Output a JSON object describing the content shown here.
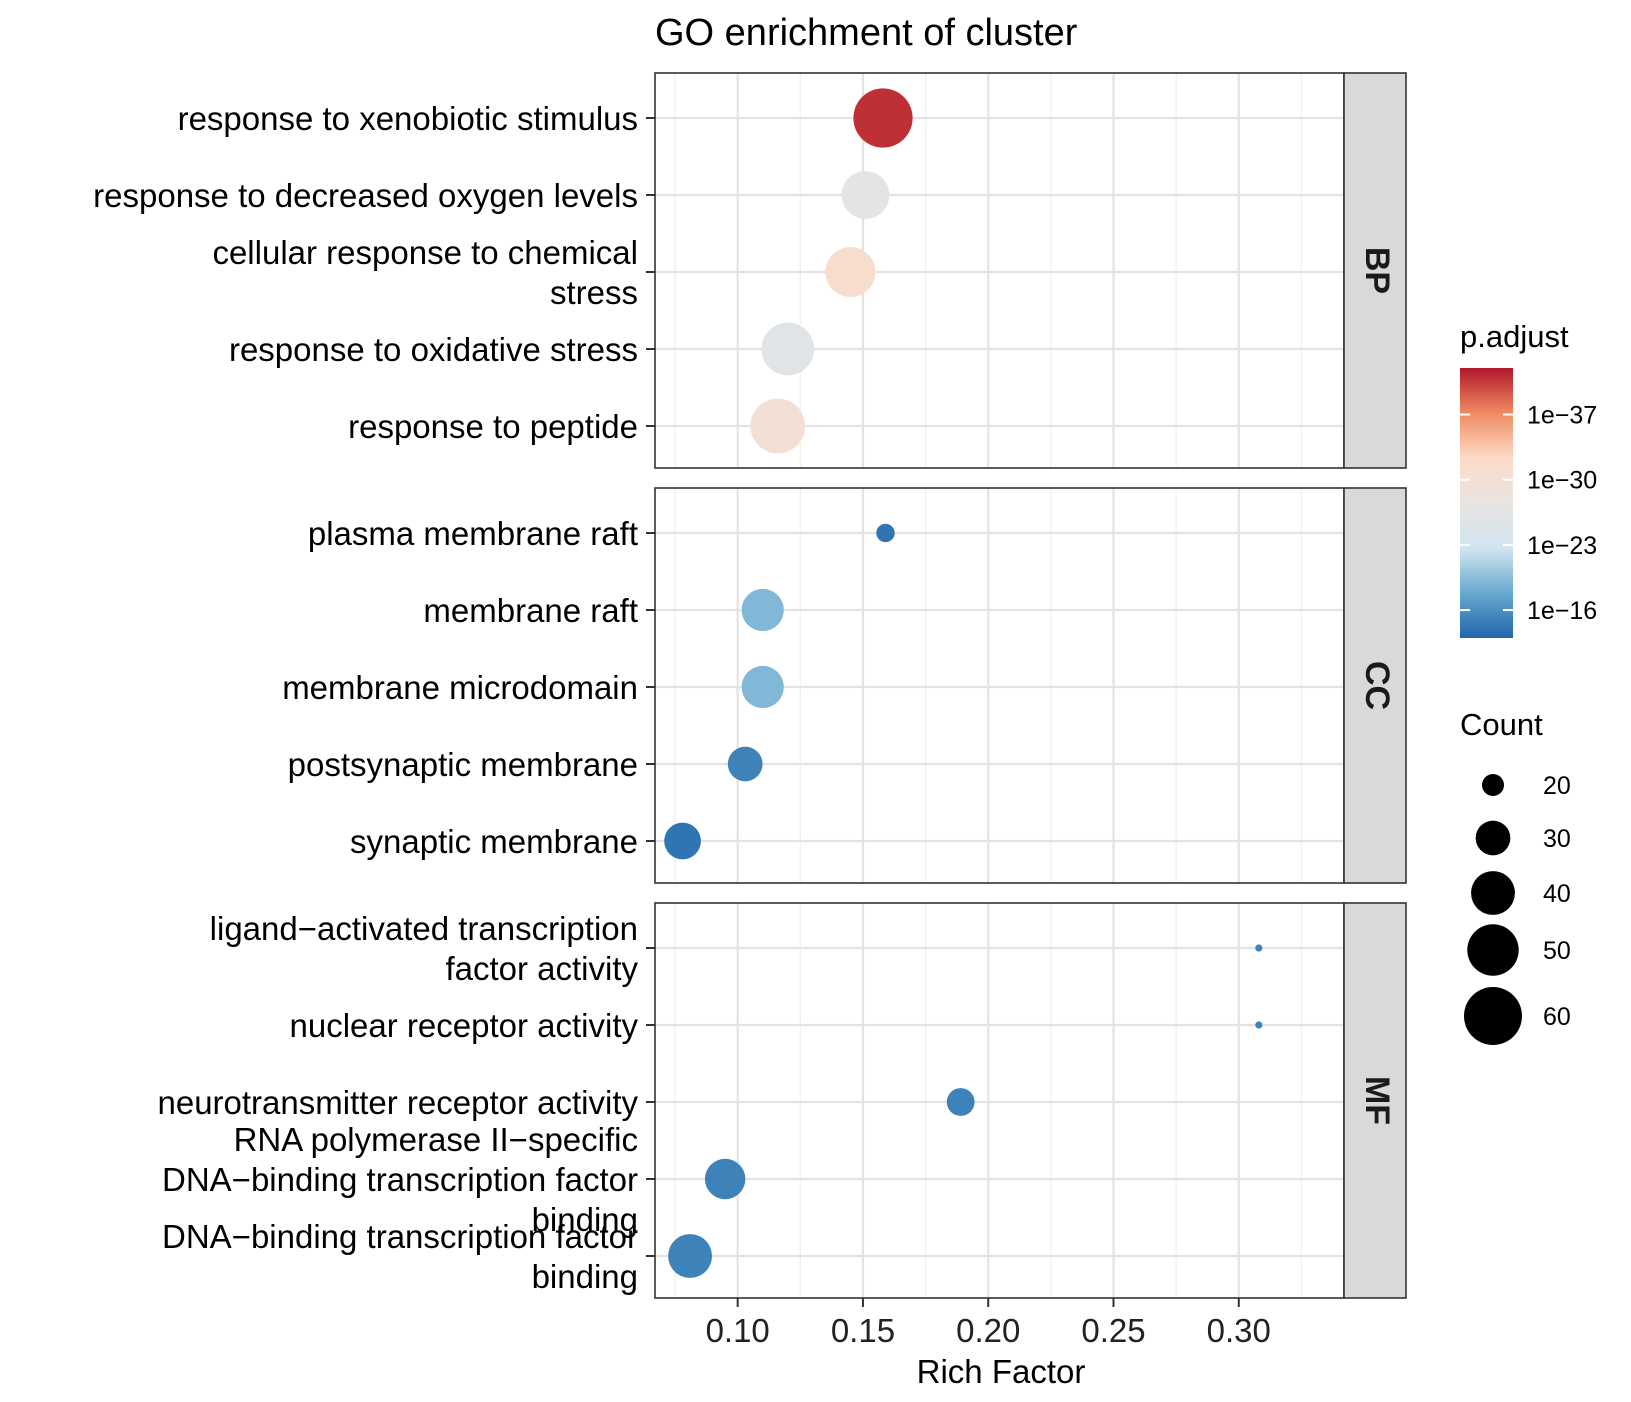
{
  "chart_data": {
    "type": "scatter",
    "title": "GO enrichment of cluster",
    "xlabel": "Rich Factor",
    "xlim": [
      0.067,
      0.342
    ],
    "xticks": [
      0.1,
      0.15,
      0.2,
      0.25,
      0.3
    ],
    "xtick_labels": [
      "0.10",
      "0.15",
      "0.20",
      "0.25",
      "0.30"
    ],
    "grid": true,
    "facets": [
      {
        "name": "BP",
        "terms": [
          {
            "label": [
              "response to xenobiotic stimulus"
            ],
            "rich_factor": 0.158,
            "count": 62,
            "log10_padj": -41
          },
          {
            "label": [
              "response to decreased oxygen levels"
            ],
            "rich_factor": 0.151,
            "count": 45,
            "log10_padj": -27
          },
          {
            "label": [
              "cellular response to chemical",
              "stress"
            ],
            "rich_factor": 0.145,
            "count": 48,
            "log10_padj": -31
          },
          {
            "label": [
              "response to oxidative stress"
            ],
            "rich_factor": 0.12,
            "count": 52,
            "log10_padj": -26
          },
          {
            "label": [
              "response to peptide"
            ],
            "rich_factor": 0.116,
            "count": 55,
            "log10_padj": -30
          }
        ]
      },
      {
        "name": "CC",
        "terms": [
          {
            "label": [
              "plasma membrane raft"
            ],
            "rich_factor": 0.159,
            "count": 18,
            "log10_padj": -14
          },
          {
            "label": [
              "membrane raft"
            ],
            "rich_factor": 0.11,
            "count": 38,
            "log10_padj": -19
          },
          {
            "label": [
              "membrane microdomain"
            ],
            "rich_factor": 0.11,
            "count": 38,
            "log10_padj": -19
          },
          {
            "label": [
              "postsynaptic membrane"
            ],
            "rich_factor": 0.103,
            "count": 30,
            "log10_padj": -15
          },
          {
            "label": [
              "synaptic membrane"
            ],
            "rich_factor": 0.078,
            "count": 32,
            "log10_padj": -14
          }
        ]
      },
      {
        "name": "MF",
        "terms": [
          {
            "label": [
              "ligand−activated transcription",
              "factor activity"
            ],
            "rich_factor": 0.308,
            "count": 14,
            "log10_padj": -15
          },
          {
            "label": [
              "nuclear receptor activity"
            ],
            "rich_factor": 0.308,
            "count": 14,
            "log10_padj": -15
          },
          {
            "label": [
              "neurotransmitter receptor activity"
            ],
            "rich_factor": 0.189,
            "count": 24,
            "log10_padj": -15
          },
          {
            "label": [
              "RNA polymerase II−specific",
              "DNA−binding transcription factor",
              "binding"
            ],
            "rich_factor": 0.095,
            "count": 36,
            "log10_padj": -15
          },
          {
            "label": [
              "DNA−binding transcription factor",
              "binding"
            ],
            "rich_factor": 0.081,
            "count": 40,
            "log10_padj": -15
          }
        ]
      }
    ],
    "color_legend": {
      "title": "p.adjust",
      "range_log10": [
        -42,
        -13
      ],
      "breaks_log10": [
        -37,
        -30,
        -23,
        -16
      ],
      "labels": [
        "1e−37",
        "1e−30",
        "1e−23",
        "1e−16"
      ],
      "colors": [
        "#b2182b",
        "#ef8a62",
        "#fddbc7",
        "#e8e4e1",
        "#d1e5f0",
        "#67a9cf",
        "#2166ac"
      ]
    },
    "size_legend": {
      "title": "Count",
      "breaks": [
        20,
        30,
        40,
        50,
        60
      ],
      "labels": [
        "20",
        "30",
        "40",
        "50",
        "60"
      ]
    },
    "legend_position": "right"
  }
}
